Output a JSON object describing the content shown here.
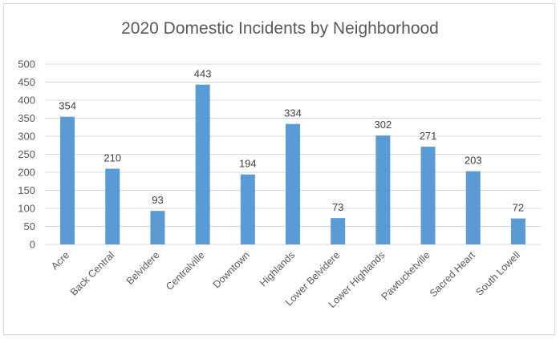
{
  "chart_data": {
    "type": "bar",
    "title": "2020 Domestic Incidents by Neighborhood",
    "xlabel": "",
    "ylabel": "",
    "categories": [
      "Acre",
      "Back Central",
      "Belvidere",
      "Centralville",
      "Downtown",
      "Highlands",
      "Lower Belvidere",
      "Lower Highlands",
      "Pawtucketville",
      "Sacred Heart",
      "South Lowell"
    ],
    "values": [
      354,
      210,
      93,
      443,
      194,
      334,
      73,
      302,
      271,
      203,
      72
    ],
    "ylim": [
      0,
      500
    ],
    "yticks": [
      0,
      50,
      100,
      150,
      200,
      250,
      300,
      350,
      400,
      450,
      500
    ],
    "grid": true,
    "data_labels": true,
    "bar_color": "#5b9bd5",
    "grid_color": "#d9d9d9"
  }
}
